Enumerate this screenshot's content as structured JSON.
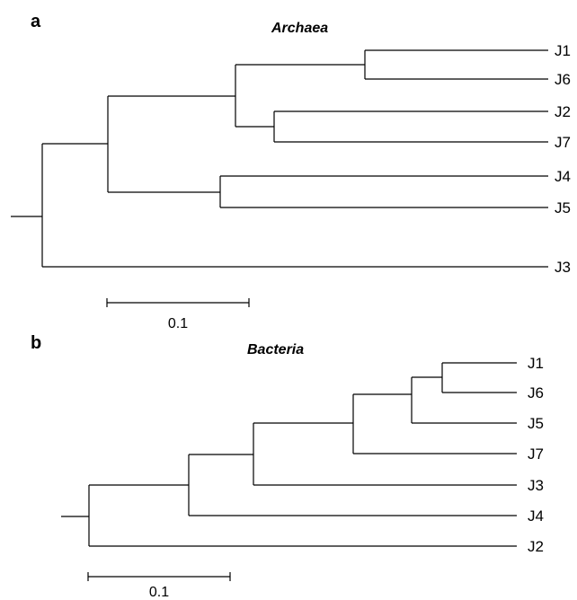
{
  "panel_a": {
    "letter": "a",
    "title": "Archaea",
    "leaves": [
      "J1",
      "J6",
      "J2",
      "J7",
      "J4",
      "J5",
      "J3"
    ],
    "scale_label": "0.1"
  },
  "panel_b": {
    "letter": "b",
    "title": "Bacteria",
    "leaves": [
      "J1",
      "J6",
      "J5",
      "J7",
      "J3",
      "J4",
      "J2"
    ],
    "scale_label": "0.1"
  }
}
